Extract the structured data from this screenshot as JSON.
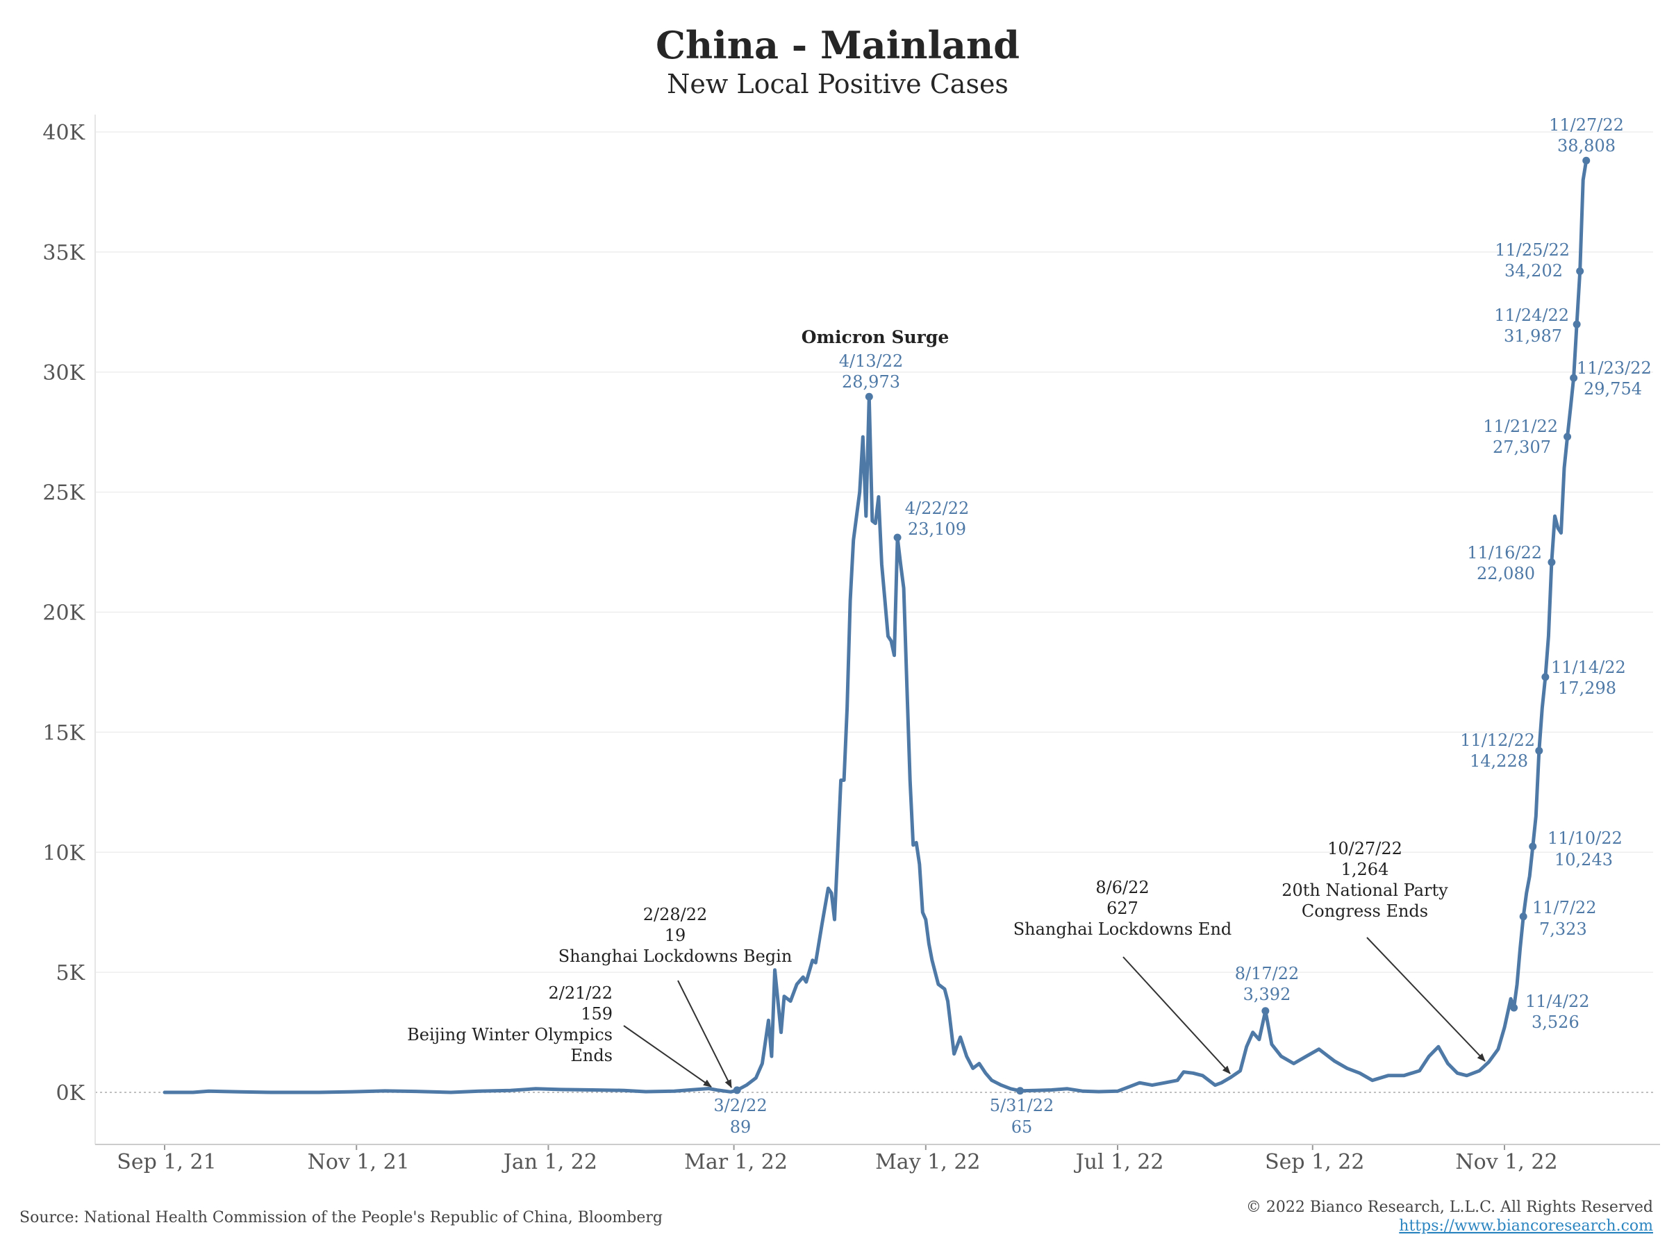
{
  "chart_data": {
    "type": "line",
    "title": "China - Mainland",
    "subtitle": "New Local Positive Cases",
    "xlabel": "",
    "ylabel": "",
    "x_range": [
      "2021-08-21",
      "2022-12-12"
    ],
    "ylim": [
      -2000,
      40000
    ],
    "y_ticks": [
      0,
      5000,
      10000,
      15000,
      20000,
      25000,
      30000,
      35000,
      40000
    ],
    "y_tick_labels": [
      "0K",
      "5K",
      "10K",
      "15K",
      "20K",
      "25K",
      "30K",
      "35K",
      "40K"
    ],
    "x_ticks": [
      "2021-09-01",
      "2021-11-01",
      "2022-01-01",
      "2022-03-01",
      "2022-05-01",
      "2022-07-01",
      "2022-09-01",
      "2022-11-01"
    ],
    "x_tick_labels": [
      "Sep 1, 21",
      "Nov 1, 21",
      "Jan 1, 22",
      "Mar 1, 22",
      "May 1, 22",
      "Jul 1, 22",
      "Sep 1, 22",
      "Nov 1, 22"
    ],
    "grid": "horizontal",
    "zero_line": "dotted",
    "line_color": "#4e79a7",
    "series": [
      {
        "points": [
          [
            "2021-09-01",
            0
          ],
          [
            "2021-09-10",
            0
          ],
          [
            "2021-09-15",
            50
          ],
          [
            "2021-09-25",
            20
          ],
          [
            "2021-10-05",
            0
          ],
          [
            "2021-10-20",
            0
          ],
          [
            "2021-11-01",
            30
          ],
          [
            "2021-11-10",
            60
          ],
          [
            "2021-11-20",
            40
          ],
          [
            "2021-12-01",
            0
          ],
          [
            "2021-12-10",
            50
          ],
          [
            "2021-12-20",
            80
          ],
          [
            "2021-12-28",
            150
          ],
          [
            "2022-01-05",
            120
          ],
          [
            "2022-01-15",
            100
          ],
          [
            "2022-01-25",
            80
          ],
          [
            "2022-02-01",
            30
          ],
          [
            "2022-02-10",
            50
          ],
          [
            "2022-02-15",
            100
          ],
          [
            "2022-02-21",
            159
          ],
          [
            "2022-02-24",
            90
          ],
          [
            "2022-02-28",
            19
          ],
          [
            "2022-03-02",
            89
          ],
          [
            "2022-03-05",
            300
          ],
          [
            "2022-03-08",
            600
          ],
          [
            "2022-03-10",
            1200
          ],
          [
            "2022-03-12",
            3000
          ],
          [
            "2022-03-13",
            1500
          ],
          [
            "2022-03-14",
            5100
          ],
          [
            "2022-03-16",
            2500
          ],
          [
            "2022-03-17",
            4000
          ],
          [
            "2022-03-19",
            3800
          ],
          [
            "2022-03-21",
            4500
          ],
          [
            "2022-03-23",
            4800
          ],
          [
            "2022-03-24",
            4600
          ],
          [
            "2022-03-26",
            5500
          ],
          [
            "2022-03-27",
            5400
          ],
          [
            "2022-03-29",
            7000
          ],
          [
            "2022-03-31",
            8500
          ],
          [
            "2022-04-01",
            8300
          ],
          [
            "2022-04-02",
            7200
          ],
          [
            "2022-04-03",
            10000
          ],
          [
            "2022-04-04",
            13000
          ],
          [
            "2022-04-05",
            13000
          ],
          [
            "2022-04-06",
            16000
          ],
          [
            "2022-04-07",
            20500
          ],
          [
            "2022-04-08",
            23000
          ],
          [
            "2022-04-09",
            24000
          ],
          [
            "2022-04-10",
            25000
          ],
          [
            "2022-04-11",
            27300
          ],
          [
            "2022-04-12",
            24000
          ],
          [
            "2022-04-13",
            28973
          ],
          [
            "2022-04-14",
            23800
          ],
          [
            "2022-04-15",
            23700
          ],
          [
            "2022-04-16",
            24800
          ],
          [
            "2022-04-17",
            22000
          ],
          [
            "2022-04-18",
            20500
          ],
          [
            "2022-04-19",
            19000
          ],
          [
            "2022-04-20",
            18800
          ],
          [
            "2022-04-21",
            18200
          ],
          [
            "2022-04-22",
            23109
          ],
          [
            "2022-04-23",
            22000
          ],
          [
            "2022-04-24",
            21000
          ],
          [
            "2022-04-25",
            17000
          ],
          [
            "2022-04-26",
            13000
          ],
          [
            "2022-04-27",
            10300
          ],
          [
            "2022-04-28",
            10400
          ],
          [
            "2022-04-29",
            9500
          ],
          [
            "2022-04-30",
            7500
          ],
          [
            "2022-05-01",
            7200
          ],
          [
            "2022-05-02",
            6200
          ],
          [
            "2022-05-03",
            5500
          ],
          [
            "2022-05-04",
            5000
          ],
          [
            "2022-05-05",
            4500
          ],
          [
            "2022-05-07",
            4300
          ],
          [
            "2022-05-08",
            3800
          ],
          [
            "2022-05-10",
            1600
          ],
          [
            "2022-05-12",
            2300
          ],
          [
            "2022-05-14",
            1500
          ],
          [
            "2022-05-16",
            1000
          ],
          [
            "2022-05-18",
            1200
          ],
          [
            "2022-05-20",
            800
          ],
          [
            "2022-05-22",
            500
          ],
          [
            "2022-05-25",
            300
          ],
          [
            "2022-05-28",
            150
          ],
          [
            "2022-05-31",
            65
          ],
          [
            "2022-06-05",
            80
          ],
          [
            "2022-06-10",
            100
          ],
          [
            "2022-06-15",
            150
          ],
          [
            "2022-06-20",
            50
          ],
          [
            "2022-06-25",
            30
          ],
          [
            "2022-07-01",
            50
          ],
          [
            "2022-07-05",
            250
          ],
          [
            "2022-07-08",
            400
          ],
          [
            "2022-07-12",
            300
          ],
          [
            "2022-07-16",
            400
          ],
          [
            "2022-07-20",
            500
          ],
          [
            "2022-07-22",
            850
          ],
          [
            "2022-07-25",
            800
          ],
          [
            "2022-07-28",
            700
          ],
          [
            "2022-08-01",
            300
          ],
          [
            "2022-08-03",
            400
          ],
          [
            "2022-08-06",
            627
          ],
          [
            "2022-08-09",
            900
          ],
          [
            "2022-08-11",
            1900
          ],
          [
            "2022-08-13",
            2500
          ],
          [
            "2022-08-15",
            2200
          ],
          [
            "2022-08-17",
            3392
          ],
          [
            "2022-08-19",
            2000
          ],
          [
            "2022-08-22",
            1500
          ],
          [
            "2022-08-26",
            1200
          ],
          [
            "2022-08-30",
            1500
          ],
          [
            "2022-09-03",
            1800
          ],
          [
            "2022-09-08",
            1300
          ],
          [
            "2022-09-12",
            1000
          ],
          [
            "2022-09-16",
            800
          ],
          [
            "2022-09-20",
            500
          ],
          [
            "2022-09-25",
            700
          ],
          [
            "2022-09-30",
            700
          ],
          [
            "2022-10-05",
            900
          ],
          [
            "2022-10-08",
            1500
          ],
          [
            "2022-10-11",
            1900
          ],
          [
            "2022-10-14",
            1200
          ],
          [
            "2022-10-17",
            800
          ],
          [
            "2022-10-20",
            700
          ],
          [
            "2022-10-24",
            900
          ],
          [
            "2022-10-27",
            1264
          ],
          [
            "2022-10-30",
            1800
          ],
          [
            "2022-11-01",
            2700
          ],
          [
            "2022-11-03",
            3900
          ],
          [
            "2022-11-04",
            3526
          ],
          [
            "2022-11-05",
            4500
          ],
          [
            "2022-11-06",
            6000
          ],
          [
            "2022-11-07",
            7323
          ],
          [
            "2022-11-08",
            8300
          ],
          [
            "2022-11-09",
            9000
          ],
          [
            "2022-11-10",
            10243
          ],
          [
            "2022-11-11",
            11500
          ],
          [
            "2022-11-12",
            14228
          ],
          [
            "2022-11-13",
            16000
          ],
          [
            "2022-11-14",
            17298
          ],
          [
            "2022-11-15",
            19000
          ],
          [
            "2022-11-16",
            22080
          ],
          [
            "2022-11-17",
            24000
          ],
          [
            "2022-11-18",
            23500
          ],
          [
            "2022-11-19",
            23300
          ],
          [
            "2022-11-20",
            26000
          ],
          [
            "2022-11-21",
            27307
          ],
          [
            "2022-11-22",
            28500
          ],
          [
            "2022-11-23",
            29754
          ],
          [
            "2022-11-24",
            31987
          ],
          [
            "2022-11-25",
            34202
          ],
          [
            "2022-11-26",
            38000
          ],
          [
            "2022-11-27",
            38808
          ]
        ]
      }
    ],
    "markers": [
      {
        "date": "2022-03-02",
        "value": 89
      },
      {
        "date": "2022-04-13",
        "value": 28973
      },
      {
        "date": "2022-04-22",
        "value": 23109
      },
      {
        "date": "2022-05-31",
        "value": 65
      },
      {
        "date": "2022-08-17",
        "value": 3392
      },
      {
        "date": "2022-11-04",
        "value": 3526
      },
      {
        "date": "2022-11-07",
        "value": 7323
      },
      {
        "date": "2022-11-10",
        "value": 10243
      },
      {
        "date": "2022-11-12",
        "value": 14228
      },
      {
        "date": "2022-11-14",
        "value": 17298
      },
      {
        "date": "2022-11-16",
        "value": 22080
      },
      {
        "date": "2022-11-21",
        "value": 27307
      },
      {
        "date": "2022-11-23",
        "value": 29754
      },
      {
        "date": "2022-11-24",
        "value": 31987
      },
      {
        "date": "2022-11-25",
        "value": 34202
      },
      {
        "date": "2022-11-27",
        "value": 38808
      }
    ],
    "annotations": {
      "omicron_surge": {
        "title": "Omicron Surge",
        "date": "4/13/22",
        "value": "28,973"
      },
      "apr22": {
        "date": "4/22/22",
        "value": "23,109"
      },
      "mar2": {
        "date": "3/2/22",
        "value": "89"
      },
      "may31": {
        "date": "5/31/22",
        "value": "65"
      },
      "aug17": {
        "date": "8/17/22",
        "value": "3,392"
      },
      "feb21": {
        "date": "2/21/22",
        "value": "159",
        "label1": "Beijing Winter Olympics",
        "label2": "Ends"
      },
      "feb28": {
        "date": "2/28/22",
        "value": "19",
        "label": "Shanghai Lockdowns Begin"
      },
      "aug6": {
        "date": "8/6/22",
        "value": "627",
        "label": "Shanghai Lockdowns End"
      },
      "oct27": {
        "date": "10/27/22",
        "value": "1,264",
        "label1": "20th National Party",
        "label2": "Congress Ends"
      },
      "nov4": {
        "date": "11/4/22",
        "value": "3,526"
      },
      "nov7": {
        "date": "11/7/22",
        "value": "7,323"
      },
      "nov10": {
        "date": "11/10/22",
        "value": "10,243"
      },
      "nov12": {
        "date": "11/12/22",
        "value": "14,228"
      },
      "nov14": {
        "date": "11/14/22",
        "value": "17,298"
      },
      "nov16": {
        "date": "11/16/22",
        "value": "22,080"
      },
      "nov21": {
        "date": "11/21/22",
        "value": "27,307"
      },
      "nov23": {
        "date": "11/23/22",
        "value": "29,754"
      },
      "nov24": {
        "date": "11/24/22",
        "value": "31,987"
      },
      "nov25": {
        "date": "11/25/22",
        "value": "34,202"
      },
      "nov27": {
        "date": "11/27/22",
        "value": "38,808"
      }
    }
  },
  "footer": {
    "source": "Source: National Health Commission of the People's Republic of China, Bloomberg",
    "copyright": "© 2022 Bianco Research, L.L.C. All Rights Reserved",
    "url": "https://www.biancoresearch.com"
  }
}
